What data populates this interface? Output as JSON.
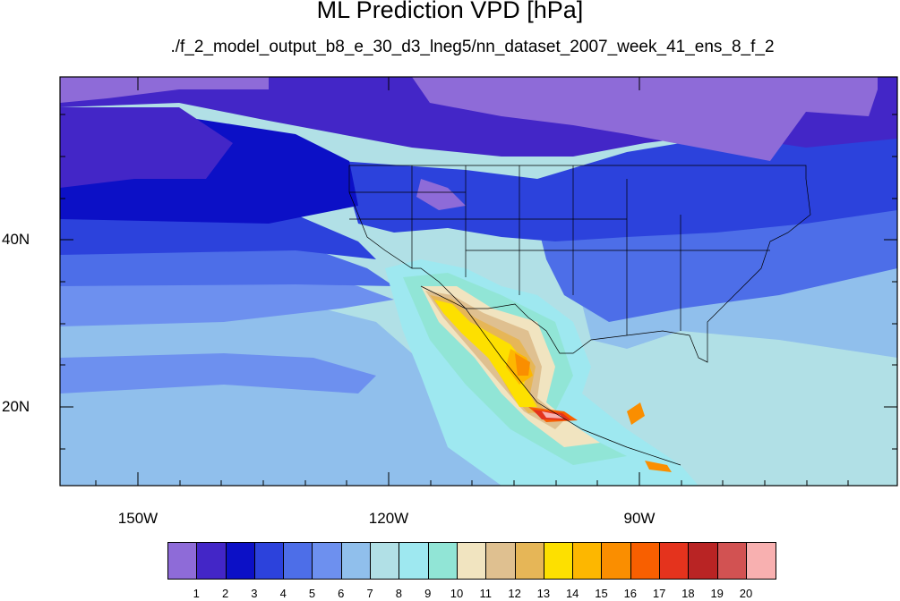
{
  "title": "ML Prediction VPD [hPa]",
  "subtitle": "./f_2_model_output_b8_e_30_d3_lneg5/nn_dataset_2007_week_41_ens_8_f_2",
  "lat_labels": [
    "40N",
    "20N"
  ],
  "lon_labels": [
    "150W",
    "120W",
    "90W"
  ],
  "legend": {
    "colors": [
      "#8e6bd8",
      "#4326c7",
      "#0c10c6",
      "#2c42dc",
      "#4d6ee8",
      "#6d90ef",
      "#90bfec",
      "#b1e0e6",
      "#9ee8f0",
      "#91e5d6",
      "#f1e4c0",
      "#dfc090",
      "#e6b657",
      "#fde000",
      "#fdb700",
      "#fa8e00",
      "#f85f00",
      "#e4331d",
      "#b92424",
      "#d25252",
      "#f8b0b0"
    ],
    "ticks": [
      "1",
      "2",
      "3",
      "4",
      "5",
      "6",
      "7",
      "8",
      "9",
      "10",
      "11",
      "12",
      "13",
      "14",
      "15",
      "16",
      "17",
      "18",
      "19",
      "20"
    ]
  },
  "palette": {
    "lavender": "#8e6bd8",
    "purple": "#4326c7",
    "deep_blue": "#0c10c6",
    "blue": "#2c42dc",
    "mid_blue": "#4d6ee8",
    "light_blue": "#6d90ef",
    "sky": "#90bfec",
    "pale_cyan": "#b1e0e6",
    "cyan": "#9ee8f0",
    "aqua": "#91e5d6",
    "beige": "#f1e4c0",
    "tan": "#dfc090",
    "gold": "#e6b657",
    "yellow": "#fde000",
    "amber": "#fdb700",
    "orange": "#fa8e00",
    "red_orange": "#f85f00",
    "red": "#e4331d",
    "pink": "#f8b0b0"
  }
}
